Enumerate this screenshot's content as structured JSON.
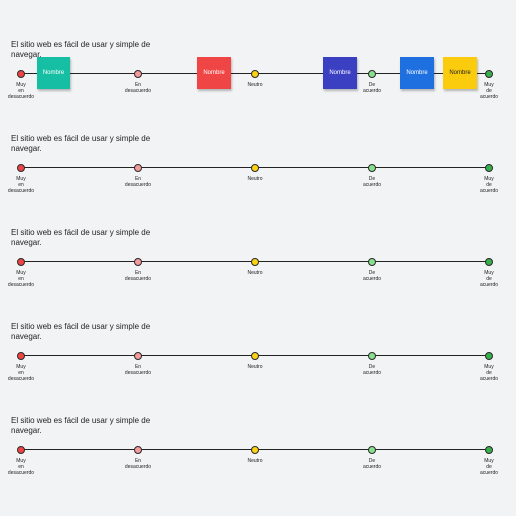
{
  "colors": {
    "scale_1": "#ef4444",
    "scale_2": "#f39a9a",
    "scale_3": "#fcd116",
    "scale_4": "#86e08e",
    "scale_5": "#36b04a"
  },
  "scale": {
    "labels": [
      "Muy\nen\ndesacuerdo",
      "En\ndesacuerdo",
      "Neutro",
      "De\nacuerdo",
      "Muy\nde\nacuerdo"
    ]
  },
  "rows": [
    {
      "question": "El sitio web es fácil de usar y simple de navegar."
    },
    {
      "question": "El sitio web es fácil de usar y simple de navegar."
    },
    {
      "question": "El sitio web es fácil de usar y simple de navegar."
    },
    {
      "question": "El sitio web es fácil de usar y simple de navegar."
    },
    {
      "question": "El sitio web es fácil de usar y simple de navegar."
    }
  ],
  "notes": [
    {
      "label": "Nombre",
      "color": "#16bfa3"
    },
    {
      "label": "Nombre",
      "color": "#f04545"
    },
    {
      "label": "Nombre",
      "color": "#3b3fc2"
    },
    {
      "label": "Nombre",
      "color": "#1e6fe0"
    },
    {
      "label": "Nombre",
      "color": "#fbcc0e"
    }
  ]
}
